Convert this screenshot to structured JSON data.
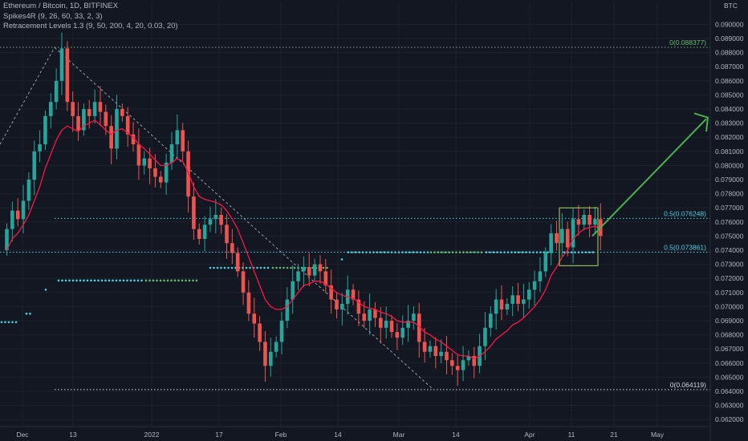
{
  "legend": {
    "symbol_line": "Ethereum / Bitcoin, 1D, BITFINEX",
    "indicator1": "Spikes4R (9, 26, 60, 33, 2, 3)",
    "indicator2": "Retracement Levels 1.3 (9, 50, 200, 4, 20, 0.03, 20)"
  },
  "currency_label": "BTC",
  "colors": {
    "background": "#131722",
    "grid": "#1e222d",
    "up": "#26a69a",
    "down": "#ef5350",
    "ma_line": "#ff1744",
    "fib_cyan": "#4dd0e1",
    "fib_green": "#66bb6a",
    "arrow": "#4caf50",
    "box": "#a5d66a",
    "dash_gray": "#9aa0aa",
    "dots_red": "#ef5350",
    "dots_green": "#66bb6a"
  },
  "chart_data": {
    "type": "candlestick",
    "symbol": "Ethereum / Bitcoin, 1D, BITFINEX",
    "ylim": [
      0.0615,
      0.0915
    ],
    "y_ticks": [
      "0.062000",
      "0.063000",
      "0.064000",
      "0.065000",
      "0.066000",
      "0.067000",
      "0.068000",
      "0.069000",
      "0.070000",
      "0.071000",
      "0.072000",
      "0.073000",
      "0.074000",
      "0.075000",
      "0.076000",
      "0.077000",
      "0.078000",
      "0.079000",
      "0.080000",
      "0.081000",
      "0.082000",
      "0.083000",
      "0.084000",
      "0.085000",
      "0.086000",
      "0.087000",
      "0.088000",
      "0.089000",
      "0.090000"
    ],
    "x_tick_labels": [
      "Dec",
      "13",
      "2022",
      "17",
      "Feb",
      "14",
      "Mar",
      "14",
      "Apr",
      "11",
      "21",
      "May"
    ],
    "levels": [
      {
        "label": "0(0.088377)",
        "value": 0.088377,
        "color": "green"
      },
      {
        "label": "0.5(0.076248)",
        "value": 0.076248,
        "color": "cyan"
      },
      {
        "label": "0.5(0.073861)",
        "value": 0.073861,
        "color": "cyan"
      },
      {
        "label": "0(0.064119)",
        "value": 0.064119,
        "color": "white"
      }
    ],
    "series": [
      {
        "name": "Close",
        "values": [
          0.0755,
          0.0768,
          0.0762,
          0.0775,
          0.079,
          0.081,
          0.0815,
          0.0835,
          0.0845,
          0.086,
          0.0883,
          0.0845,
          0.0835,
          0.0825,
          0.084,
          0.0835,
          0.0845,
          0.0838,
          0.0828,
          0.0812,
          0.084,
          0.0835,
          0.0822,
          0.0815,
          0.08,
          0.0805,
          0.0798,
          0.0792,
          0.0788,
          0.0802,
          0.0815,
          0.0825,
          0.081,
          0.0778,
          0.0755,
          0.0748,
          0.0758,
          0.0762,
          0.0765,
          0.0758,
          0.0745,
          0.0738,
          0.0725,
          0.071,
          0.0695,
          0.0688,
          0.0675,
          0.0658,
          0.0668,
          0.0675,
          0.069,
          0.0705,
          0.0718,
          0.0725,
          0.0728,
          0.0722,
          0.073,
          0.0725,
          0.0715,
          0.0705,
          0.0698,
          0.0702,
          0.0712,
          0.0705,
          0.0695,
          0.069,
          0.0698,
          0.0692,
          0.0685,
          0.069,
          0.0682,
          0.0678,
          0.0685,
          0.069,
          0.0695,
          0.0675,
          0.0668,
          0.0672,
          0.0665,
          0.0668,
          0.0662,
          0.0658,
          0.0655,
          0.0662,
          0.0665,
          0.0658,
          0.0672,
          0.0685,
          0.0695,
          0.0705,
          0.0698,
          0.0702,
          0.0708,
          0.0702,
          0.0705,
          0.0712,
          0.0718,
          0.0725,
          0.0738,
          0.0752,
          0.0745,
          0.0755,
          0.0742,
          0.0762,
          0.0758,
          0.0765,
          0.0758,
          0.0762,
          0.075
        ]
      },
      {
        "name": "MA",
        "values": [
          0.074,
          0.0748,
          0.0752,
          0.0758,
          0.0765,
          0.0775,
          0.0785,
          0.0798,
          0.0808,
          0.0818,
          0.0825,
          0.0828,
          0.0826,
          0.0824,
          0.0828,
          0.083,
          0.0832,
          0.0829,
          0.0825,
          0.0822,
          0.0825,
          0.0826,
          0.0823,
          0.082,
          0.0815,
          0.0812,
          0.0808,
          0.0804,
          0.08,
          0.08,
          0.0802,
          0.0805,
          0.0803,
          0.0795,
          0.0785,
          0.0778,
          0.0776,
          0.0775,
          0.0774,
          0.0772,
          0.0768,
          0.0762,
          0.0755,
          0.0745,
          0.0735,
          0.0725,
          0.0715,
          0.0705,
          0.07,
          0.0698,
          0.0698,
          0.07,
          0.0705,
          0.071,
          0.0715,
          0.0716,
          0.0718,
          0.0718,
          0.0716,
          0.0713,
          0.071,
          0.0708,
          0.0707,
          0.0706,
          0.0703,
          0.07,
          0.0699,
          0.0698,
          0.0696,
          0.0695,
          0.0693,
          0.069,
          0.0689,
          0.0689,
          0.0689,
          0.0686,
          0.0682,
          0.068,
          0.0677,
          0.0675,
          0.0672,
          0.0669,
          0.0666,
          0.0665,
          0.0665,
          0.0663,
          0.0665,
          0.0668,
          0.0672,
          0.0677,
          0.068,
          0.0683,
          0.0687,
          0.0689,
          0.0692,
          0.0696,
          0.07,
          0.0705,
          0.0712,
          0.0722,
          0.0728,
          0.0735,
          0.074,
          0.0748,
          0.0752,
          0.0755,
          0.0756,
          0.0757,
          0.0755
        ]
      }
    ]
  }
}
